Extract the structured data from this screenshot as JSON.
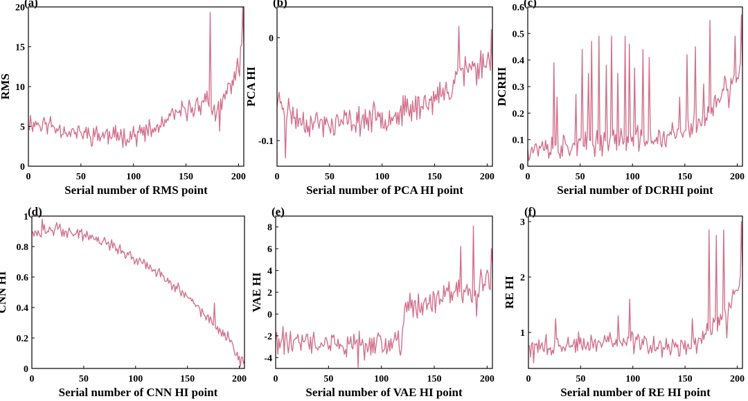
{
  "colors": {
    "series": "#d2708c",
    "axes": "#000000"
  },
  "chart_data": [
    {
      "type": "line",
      "panel_label": "(a)",
      "xlabel": "Serial number of RMS point",
      "ylabel": "RMS",
      "xlim": [
        0,
        205
      ],
      "ylim": [
        0,
        20
      ],
      "xticks": [
        0,
        50,
        100,
        150,
        200
      ],
      "yticks": [
        0,
        5,
        10,
        15,
        20
      ],
      "ytick_labels": [
        "0",
        "5",
        "10",
        "15",
        "20"
      ],
      "grid": false,
      "anchors": [
        [
          0,
          5.5
        ],
        [
          20,
          5.2
        ],
        [
          40,
          4.3
        ],
        [
          60,
          4.0
        ],
        [
          80,
          3.8
        ],
        [
          100,
          3.9
        ],
        [
          120,
          4.5
        ],
        [
          140,
          6.5
        ],
        [
          160,
          7.5
        ],
        [
          170,
          8.5
        ],
        [
          175,
          7.0
        ],
        [
          180,
          6.5
        ],
        [
          190,
          9.5
        ],
        [
          200,
          12.5
        ],
        [
          204,
          15.0
        ]
      ],
      "noise": 1.6,
      "seed": 11,
      "spikes": [
        [
          173,
          19.3
        ],
        [
          182,
          4.4
        ],
        [
          201,
          11.3
        ],
        [
          204,
          20.0
        ]
      ]
    },
    {
      "type": "line",
      "panel_label": "(b)",
      "xlabel": "Serial number of PCA HI point",
      "ylabel": "PCA HI",
      "xlim": [
        0,
        205
      ],
      "ylim": [
        -0.125,
        0.03
      ],
      "xticks": [
        0,
        50,
        100,
        150,
        200
      ],
      "yticks": [
        -0.1,
        0
      ],
      "ytick_labels": [
        "-0.1",
        "0"
      ],
      "grid": false,
      "anchors": [
        [
          0,
          -0.06
        ],
        [
          20,
          -0.08
        ],
        [
          50,
          -0.085
        ],
        [
          80,
          -0.08
        ],
        [
          110,
          -0.075
        ],
        [
          130,
          -0.068
        ],
        [
          150,
          -0.06
        ],
        [
          165,
          -0.05
        ],
        [
          172,
          -0.03
        ],
        [
          185,
          -0.03
        ],
        [
          204,
          -0.02
        ]
      ],
      "noise": 0.017,
      "seed": 23,
      "spikes": [
        [
          8,
          -0.117
        ],
        [
          173,
          0.011
        ],
        [
          178,
          -0.047
        ],
        [
          190,
          -0.046
        ],
        [
          204,
          0.008
        ]
      ]
    },
    {
      "type": "line",
      "panel_label": "(c)",
      "xlabel": "Serial number of DCRHI point",
      "ylabel": "DCRHI",
      "xlim": [
        0,
        205
      ],
      "ylim": [
        0,
        0.6
      ],
      "xticks": [
        0,
        50,
        100,
        150,
        200
      ],
      "yticks": [
        0,
        0.1,
        0.2,
        0.3,
        0.4,
        0.5,
        0.6
      ],
      "ytick_labels": [
        "0",
        "0.1",
        "0.2",
        "0.3",
        "0.4",
        "0.5",
        "0.6"
      ],
      "grid": false,
      "anchors": [
        [
          0,
          0.07
        ],
        [
          40,
          0.07
        ],
        [
          80,
          0.1
        ],
        [
          120,
          0.1
        ],
        [
          150,
          0.13
        ],
        [
          170,
          0.18
        ],
        [
          185,
          0.26
        ],
        [
          204,
          0.36
        ]
      ],
      "noise": 0.06,
      "seed": 37,
      "spikes": [
        [
          25,
          0.39
        ],
        [
          28,
          0.26
        ],
        [
          46,
          0.27
        ],
        [
          52,
          0.44
        ],
        [
          58,
          0.35
        ],
        [
          61,
          0.47
        ],
        [
          68,
          0.49
        ],
        [
          75,
          0.38
        ],
        [
          80,
          0.49
        ],
        [
          86,
          0.35
        ],
        [
          93,
          0.49
        ],
        [
          97,
          0.46
        ],
        [
          102,
          0.37
        ],
        [
          110,
          0.44
        ],
        [
          116,
          0.41
        ],
        [
          145,
          0.26
        ],
        [
          152,
          0.42
        ],
        [
          160,
          0.45
        ],
        [
          168,
          0.31
        ],
        [
          174,
          0.55
        ],
        [
          188,
          0.34
        ],
        [
          192,
          0.22
        ],
        [
          198,
          0.49
        ],
        [
          202,
          0.36
        ],
        [
          204,
          0.57
        ]
      ]
    },
    {
      "type": "line",
      "panel_label": "(d)",
      "xlabel": "Serial number of CNN HI point",
      "ylabel": "CNN HI",
      "xlim": [
        0,
        205
      ],
      "ylim": [
        0,
        1
      ],
      "xticks": [
        0,
        50,
        100,
        150,
        200
      ],
      "yticks": [
        0,
        0.2,
        0.4,
        0.6,
        0.8,
        1
      ],
      "ytick_labels": [
        "0",
        "0.2",
        "0.4",
        "0.6",
        "0.8",
        "1"
      ],
      "grid": false,
      "anchors": [
        [
          0,
          0.9
        ],
        [
          25,
          0.92
        ],
        [
          50,
          0.87
        ],
        [
          75,
          0.81
        ],
        [
          100,
          0.72
        ],
        [
          125,
          0.61
        ],
        [
          150,
          0.46
        ],
        [
          165,
          0.36
        ],
        [
          175,
          0.28
        ],
        [
          190,
          0.2
        ],
        [
          200,
          0.07
        ],
        [
          204,
          0.05
        ]
      ],
      "noise": 0.05,
      "seed": 49,
      "spikes": [
        [
          10,
          0.98
        ],
        [
          176,
          0.43
        ],
        [
          201,
          0.01
        ]
      ]
    },
    {
      "type": "line",
      "panel_label": "(e)",
      "xlabel": "Serial number of VAE HI point",
      "ylabel": "VAE HI",
      "xlim": [
        0,
        205
      ],
      "ylim": [
        -5,
        9
      ],
      "xticks": [
        0,
        50,
        100,
        150,
        200
      ],
      "yticks": [
        -4,
        -2,
        0,
        2,
        4,
        6,
        8
      ],
      "ytick_labels": [
        "-4",
        "-2",
        "0",
        "2",
        "4",
        "6",
        "8"
      ],
      "grid": false,
      "anchors": [
        [
          0,
          -2.5
        ],
        [
          40,
          -2.8
        ],
        [
          80,
          -3.0
        ],
        [
          110,
          -2.8
        ],
        [
          119,
          -2.5
        ],
        [
          122,
          0.5
        ],
        [
          140,
          1.0
        ],
        [
          160,
          1.5
        ],
        [
          180,
          2.0
        ],
        [
          204,
          3.5
        ]
      ],
      "noise": 1.6,
      "seed": 61,
      "spikes": [
        [
          78,
          -4.9
        ],
        [
          175,
          6.2
        ],
        [
          187,
          8.1
        ],
        [
          190,
          -0.2
        ],
        [
          204,
          6.0
        ]
      ]
    },
    {
      "type": "line",
      "panel_label": "(f)",
      "xlabel": "Serial number of RE HI point",
      "ylabel": "RE HI",
      "xlim": [
        0,
        205
      ],
      "ylim": [
        0.35,
        3.1
      ],
      "xticks": [
        0,
        50,
        100,
        150,
        200
      ],
      "yticks": [
        1,
        2,
        3
      ],
      "ytick_labels": [
        "1",
        "2",
        "3"
      ],
      "grid": false,
      "anchors": [
        [
          0,
          0.72
        ],
        [
          40,
          0.78
        ],
        [
          80,
          0.85
        ],
        [
          100,
          0.82
        ],
        [
          130,
          0.72
        ],
        [
          160,
          0.75
        ],
        [
          170,
          1.0
        ],
        [
          180,
          1.1
        ],
        [
          190,
          1.4
        ],
        [
          200,
          1.8
        ],
        [
          204,
          2.1
        ]
      ],
      "noise": 0.22,
      "seed": 73,
      "spikes": [
        [
          5,
          0.45
        ],
        [
          26,
          1.25
        ],
        [
          86,
          1.3
        ],
        [
          97,
          1.6
        ],
        [
          157,
          1.25
        ],
        [
          173,
          2.85
        ],
        [
          180,
          2.75
        ],
        [
          187,
          2.85
        ],
        [
          190,
          0.9
        ],
        [
          204,
          3.0
        ]
      ]
    }
  ]
}
